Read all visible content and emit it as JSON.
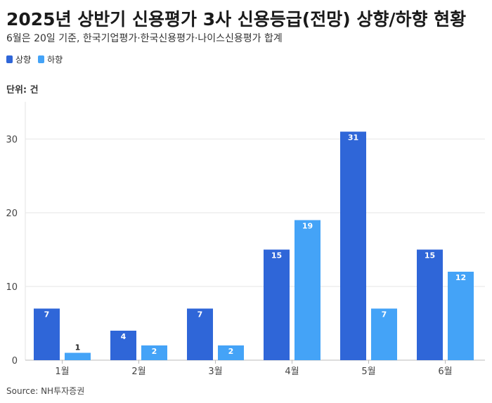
{
  "title": "2025년 상반기 신용평가 3사 신용등급(전망) 상향/하향 현황",
  "subtitle": "6월은 20일 기준, 한국기업평가·한국신용평가·나이스신용평가 합계",
  "unit_label": "단위: 건",
  "source": "Source: NH투자증권",
  "chart_data": {
    "type": "bar",
    "categories": [
      "1월",
      "2월",
      "3월",
      "4월",
      "5월",
      "6월"
    ],
    "series": [
      {
        "name": "상향",
        "color": "#2f66d8",
        "values": [
          7,
          4,
          7,
          15,
          31,
          15
        ]
      },
      {
        "name": "하향",
        "color": "#44a3f7",
        "values": [
          1,
          2,
          2,
          19,
          7,
          12
        ]
      }
    ],
    "y_ticks": [
      "0",
      "10",
      "20",
      "30"
    ],
    "ylim": [
      0,
      35
    ],
    "grid": true,
    "legend_position": "top-left"
  }
}
